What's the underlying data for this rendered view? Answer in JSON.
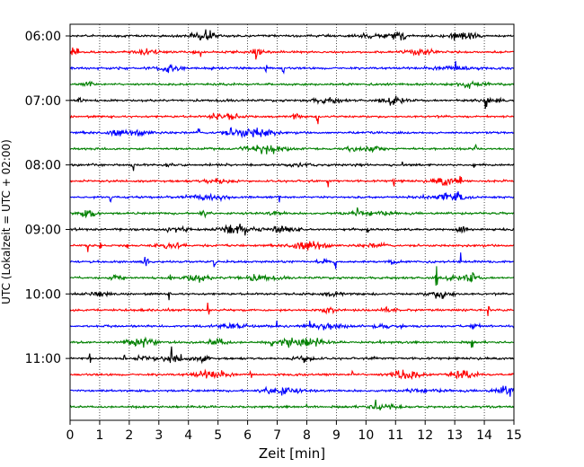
{
  "chart_data": {
    "type": "line",
    "title": "",
    "xlabel": "Zeit  [min]",
    "ylabel": "UTC (Lokalzeit = UTC + 02:00)",
    "xlim": [
      0,
      15
    ],
    "x_ticks": [
      0,
      1,
      2,
      3,
      4,
      5,
      6,
      7,
      8,
      9,
      10,
      11,
      12,
      13,
      14,
      15
    ],
    "y_tick_labels": [
      "06:00",
      "07:00",
      "08:00",
      "09:00",
      "10:00",
      "11:00"
    ],
    "y_tick_times": [
      "06:00",
      "07:00",
      "08:00",
      "09:00",
      "10:00",
      "11:00"
    ],
    "trace_start_times": [
      "06:00",
      "06:15",
      "06:30",
      "06:45",
      "07:00",
      "07:15",
      "07:30",
      "07:45",
      "08:00",
      "08:15",
      "08:30",
      "08:45",
      "09:00",
      "09:15",
      "09:30",
      "09:45",
      "10:00",
      "10:15",
      "10:30",
      "10:45",
      "11:00",
      "11:15",
      "11:30",
      "11:45"
    ],
    "trace_minutes_per_line": 15,
    "trace_colors": [
      "#000000",
      "#ff0000",
      "#0000ff",
      "#008000"
    ],
    "grid_x": "dotted",
    "grid_y": false,
    "legend": "none"
  }
}
